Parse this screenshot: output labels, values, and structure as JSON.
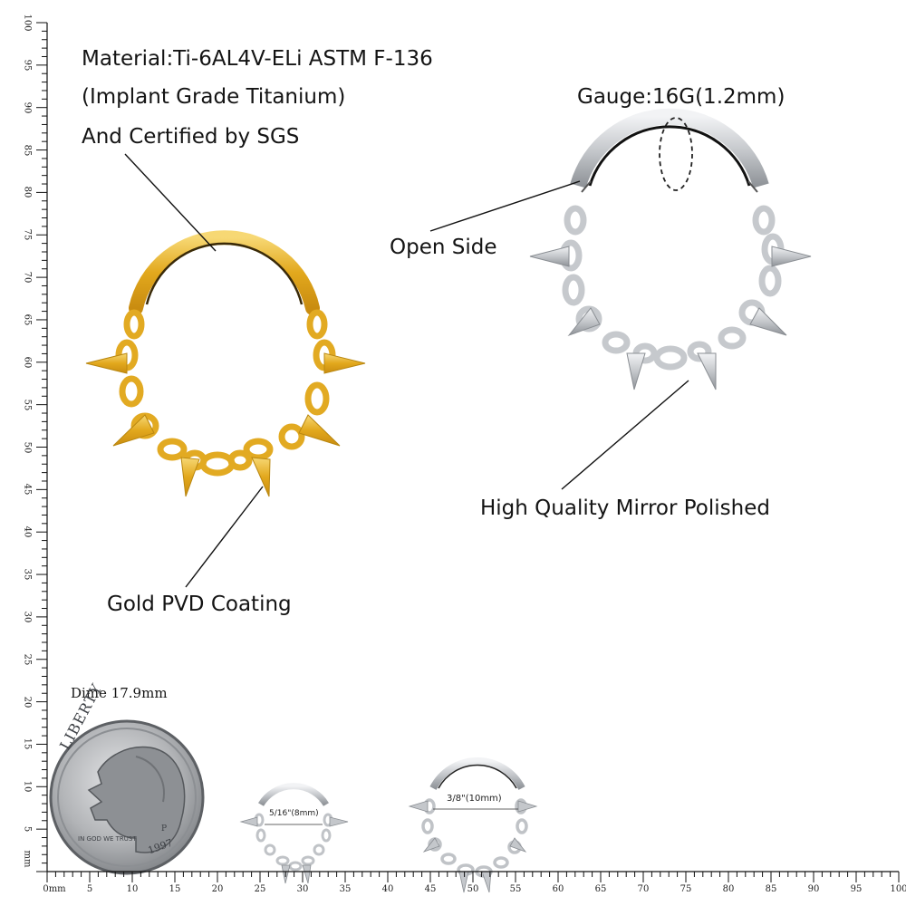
{
  "labels": {
    "material": "Material:Ti-6AL4V-ELi ASTM F-136",
    "implant": "(Implant Grade Titanium)",
    "certified": "And Certified by SGS",
    "gauge": "Gauge:16G(1.2mm)",
    "open_side": "Open Side",
    "mirror": "High Quality Mirror Polished",
    "gold": "Gold PVD Coating",
    "dime": "Dime 17.9mm"
  },
  "coin": {
    "top_text": "LIBERTY",
    "motto": "IN GOD WE TRUST",
    "year": "1997",
    "mint": "P"
  },
  "sizes": {
    "small": "5/16\"(8mm)",
    "large": "3/8\"(10mm)"
  },
  "ruler": {
    "x_labels": [
      "0mm",
      "5",
      "10",
      "15",
      "20",
      "25",
      "30",
      "35",
      "40",
      "45",
      "50",
      "55",
      "60",
      "65",
      "70",
      "75",
      "80",
      "85",
      "90",
      "95",
      "100"
    ],
    "y_labels": [
      "mm",
      "5",
      "10",
      "15",
      "20",
      "25",
      "30",
      "35",
      "40",
      "45",
      "50",
      "55",
      "60",
      "65",
      "70",
      "75",
      "80",
      "85",
      "90",
      "95",
      "100"
    ]
  },
  "colors": {
    "gold": "#e8b62c",
    "silver": "#c9cbce",
    "coin": "#a9abad"
  }
}
